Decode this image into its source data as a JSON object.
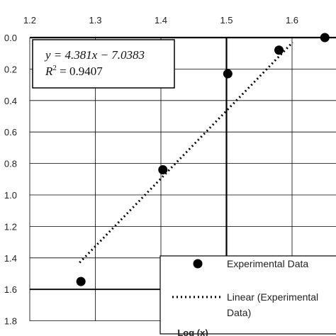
{
  "chart_data": {
    "type": "scatter",
    "xlabel": "Log (x)",
    "ylabel": "",
    "x_ticks": [
      "1.2",
      "1.3",
      "1.4",
      "1.5",
      "1.6"
    ],
    "y_ticks": [
      "0.0",
      "0.2",
      "0.4",
      "0.6",
      "0.8",
      "1.0",
      "1.2",
      "1.4",
      "1.6",
      "1.8"
    ],
    "xlim": [
      1.2,
      1.7
    ],
    "ylim": [
      0.0,
      1.8
    ],
    "y_axis_inverted": true,
    "grid": true,
    "legend_position": "bottom-right",
    "series": [
      {
        "name": "Experimental Data",
        "marker": "circle",
        "color": "#000000",
        "points": [
          {
            "x": 1.278,
            "y": 1.55
          },
          {
            "x": 1.403,
            "y": 0.84
          },
          {
            "x": 1.502,
            "y": 0.23
          },
          {
            "x": 1.58,
            "y": 0.08
          },
          {
            "x": 1.65,
            "y": 0.0
          }
        ]
      },
      {
        "name": "Linear (Experimental Data)",
        "style": "dotted",
        "color": "#000000",
        "points": [
          {
            "x": 1.276,
            "y": 1.43
          },
          {
            "x": 1.601,
            "y": 0.03
          }
        ]
      }
    ],
    "annotation": {
      "equation": "y = 4.381x − 7.0383",
      "r_squared_label": "R",
      "r_squared_exp": "2",
      "r_squared_value": " = 0.9407"
    },
    "legend": {
      "line1": "Experimental Data",
      "line2a": "Linear (Experimental",
      "line2b": "Data)"
    }
  }
}
